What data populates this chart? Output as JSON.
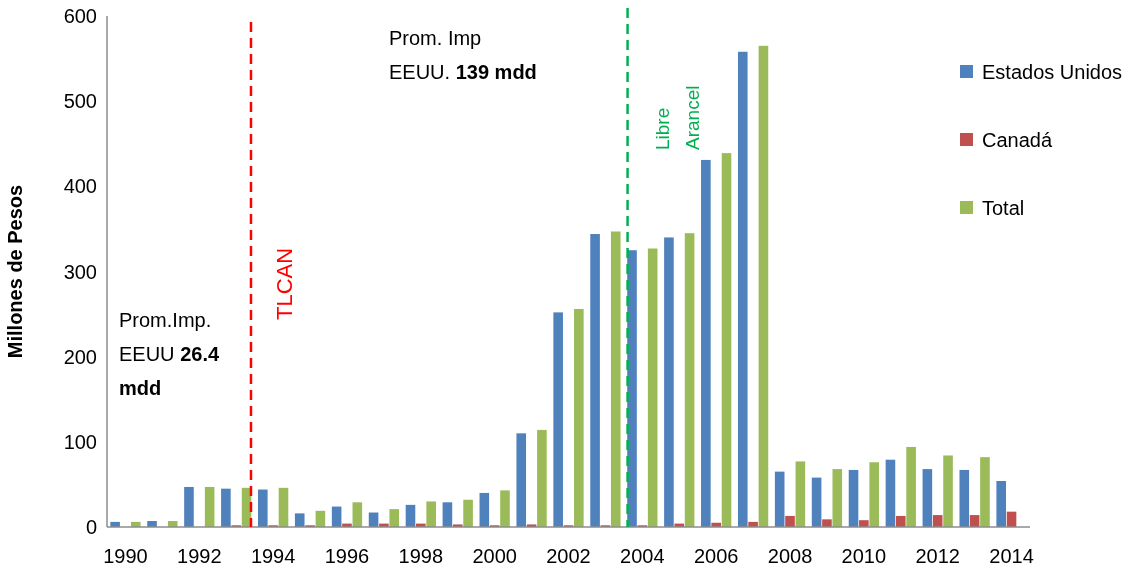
{
  "chart_data": {
    "type": "bar",
    "ylabel": "Millones de Pesos",
    "x": [
      1990,
      1991,
      1992,
      1993,
      1994,
      1995,
      1996,
      1997,
      1998,
      1999,
      2000,
      2001,
      2002,
      2003,
      2004,
      2005,
      2006,
      2007,
      2008,
      2009,
      2010,
      2011,
      2012,
      2013,
      2014
    ],
    "xlim": [
      1989.5,
      2014.5
    ],
    "xticks": [
      1990,
      1992,
      1994,
      1996,
      1998,
      2000,
      2002,
      2004,
      2006,
      2008,
      2010,
      2012,
      2014
    ],
    "ylim": [
      0,
      600
    ],
    "yticks": [
      0,
      100,
      200,
      300,
      400,
      500,
      600
    ],
    "series": [
      {
        "name": "Estados Unidos",
        "color": "#4f81bd",
        "values": [
          6,
          7,
          47,
          45,
          44,
          16,
          24,
          17,
          26,
          29,
          40,
          110,
          252,
          344,
          325,
          340,
          431,
          558,
          65,
          58,
          67,
          79,
          68,
          67,
          54
        ]
      },
      {
        "name": "Canadá",
        "color": "#c0504d",
        "values": [
          0,
          0,
          0,
          2,
          2,
          2,
          4,
          4,
          4,
          3,
          2,
          3,
          2,
          2,
          2,
          4,
          5,
          6,
          13,
          9,
          8,
          13,
          14,
          14,
          18
        ]
      },
      {
        "name": "Total",
        "color": "#9bbb59",
        "values": [
          6,
          7,
          47,
          46,
          46,
          19,
          29,
          21,
          30,
          32,
          43,
          114,
          256,
          347,
          327,
          345,
          439,
          565,
          77,
          68,
          76,
          94,
          84,
          82,
          null
        ]
      }
    ],
    "ref_lines": [
      {
        "axis": "x",
        "value": 1993.4,
        "label": "TLCAN",
        "color": "#ff0000",
        "line_style": "dashed"
      },
      {
        "axis": "x",
        "value": 2003.6,
        "label": "Libre\nArancel",
        "color": "#00b050",
        "line_style": "dashed"
      }
    ],
    "annotations": [
      "Prom.Imp.\nEEUU 26.4\nmdd",
      "Prom. Imp\nEEUU. 139 mdd"
    ],
    "legend": "right",
    "grid": false
  }
}
